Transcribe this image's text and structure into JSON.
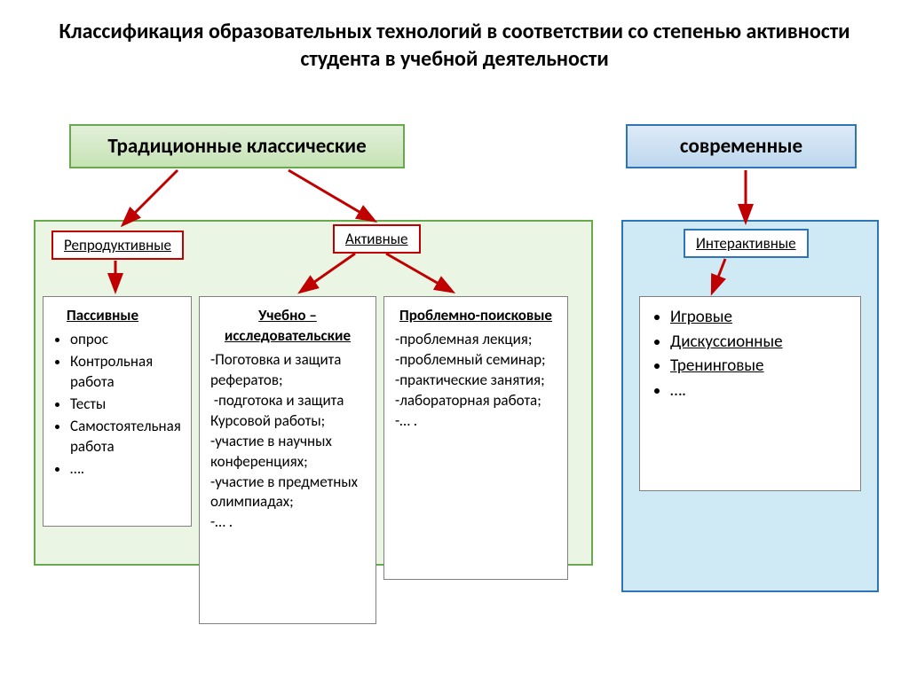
{
  "title": "Классификация образовательных технологий в соответствии со степенью активности студента в учебной деятельности",
  "colors": {
    "green_border": "#6aa84f",
    "green_light1": "#e2f0d9",
    "green_light2": "#c7e3b5",
    "green_panel_bg": "#eaf5e3",
    "blue_border": "#2e75b6",
    "blue_light1": "#deebf7",
    "blue_light2": "#bdd7ee",
    "blue_panel_bg": "#cfe9f5",
    "red_border": "#c00000",
    "blue_sub_border": "#2e75b6",
    "arrow_red": "#c00000",
    "text_black": "#000000"
  },
  "top_boxes": {
    "traditional": {
      "label": "Традиционные классические",
      "fontsize": 23
    },
    "modern": {
      "label": "современные",
      "fontsize": 23
    }
  },
  "sub_boxes": {
    "reproductive": "Репродуктивные",
    "active": "Активные",
    "interactive": "Интерактивные"
  },
  "content": {
    "passive": {
      "heading": "Пассивные",
      "items": [
        "опрос",
        "Контрольная работа",
        "Тесты",
        "Самостоятельная работа",
        "…."
      ]
    },
    "research": {
      "heading": "Учебно – исследовательские",
      "body": "-Поготовка и защита рефератов;\n -подготока и защита\nКурсовой работы;\n-участие в научных конференциях;\n-участие в предметных олимпиадах;\n-… ."
    },
    "problem": {
      "heading": "Проблемно-поисковые",
      "body": "-проблемная лекция;\n-проблемный семинар;\n-практические занятия;\n-лабораторная работа;\n-… ."
    },
    "interactive_list": {
      "items": [
        "Игровые",
        "Дискуссионные",
        "Тренинговые",
        "…."
      ],
      "underline": [
        true,
        true,
        true,
        false
      ]
    }
  }
}
